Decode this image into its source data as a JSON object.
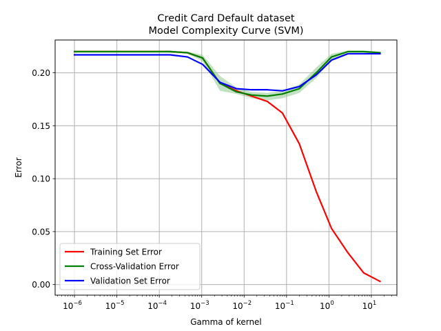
{
  "chart_data": {
    "type": "line",
    "title_line1": "Credit Card Default dataset",
    "title_line2": "Model Complexity Curve (SVM)",
    "xlabel": "Gamma of kernel",
    "ylabel": "Error",
    "xscale": "log",
    "xlim": [
      3.5e-07,
      40
    ],
    "ylim": [
      -0.01,
      0.231
    ],
    "grid": true,
    "legend_position": "lower-left",
    "x_ticks": [
      {
        "value": 1e-06,
        "base": "10",
        "exp": "−6"
      },
      {
        "value": 1e-05,
        "base": "10",
        "exp": "−5"
      },
      {
        "value": 0.0001,
        "base": "10",
        "exp": "−4"
      },
      {
        "value": 0.001,
        "base": "10",
        "exp": "−3"
      },
      {
        "value": 0.01,
        "base": "10",
        "exp": "−2"
      },
      {
        "value": 0.1,
        "base": "10",
        "exp": "−1"
      },
      {
        "value": 1,
        "base": "10",
        "exp": "0"
      },
      {
        "value": 10,
        "base": "10",
        "exp": "1"
      }
    ],
    "y_ticks": [
      {
        "value": 0.0,
        "label": "0.00"
      },
      {
        "value": 0.05,
        "label": "0.05"
      },
      {
        "value": 0.1,
        "label": "0.10"
      },
      {
        "value": 0.15,
        "label": "0.15"
      },
      {
        "value": 0.2,
        "label": "0.20"
      }
    ],
    "x": [
      1e-06,
      0.00018,
      0.00046,
      0.00105,
      0.0027,
      0.0066,
      0.015,
      0.035,
      0.08,
      0.2,
      0.5,
      1.15,
      2.8,
      6.6,
      16
    ],
    "series": [
      {
        "name": "Training Set Error",
        "color": "#ff0000",
        "values": [
          0.22,
          0.22,
          0.219,
          0.214,
          0.19,
          0.183,
          0.178,
          0.173,
          0.162,
          0.133,
          0.088,
          0.053,
          0.03,
          0.011,
          0.003
        ]
      },
      {
        "name": "Cross-Validation Error",
        "color": "#008000",
        "band_color": "#90c890",
        "values": [
          0.22,
          0.22,
          0.219,
          0.214,
          0.19,
          0.182,
          0.179,
          0.178,
          0.18,
          0.185,
          0.2,
          0.215,
          0.22,
          0.22,
          0.219
        ],
        "band_low": [
          0.219,
          0.219,
          0.218,
          0.211,
          0.183,
          0.18,
          0.176,
          0.174,
          0.176,
          0.181,
          0.195,
          0.212,
          0.219,
          0.219,
          0.218
        ],
        "band_high": [
          0.221,
          0.221,
          0.22,
          0.217,
          0.197,
          0.186,
          0.182,
          0.181,
          0.183,
          0.189,
          0.205,
          0.218,
          0.221,
          0.221,
          0.22
        ]
      },
      {
        "name": "Validation Set Error",
        "color": "#0000ff",
        "values": [
          0.217,
          0.217,
          0.215,
          0.208,
          0.191,
          0.185,
          0.184,
          0.184,
          0.183,
          0.187,
          0.198,
          0.212,
          0.218,
          0.218,
          0.218
        ]
      }
    ]
  }
}
